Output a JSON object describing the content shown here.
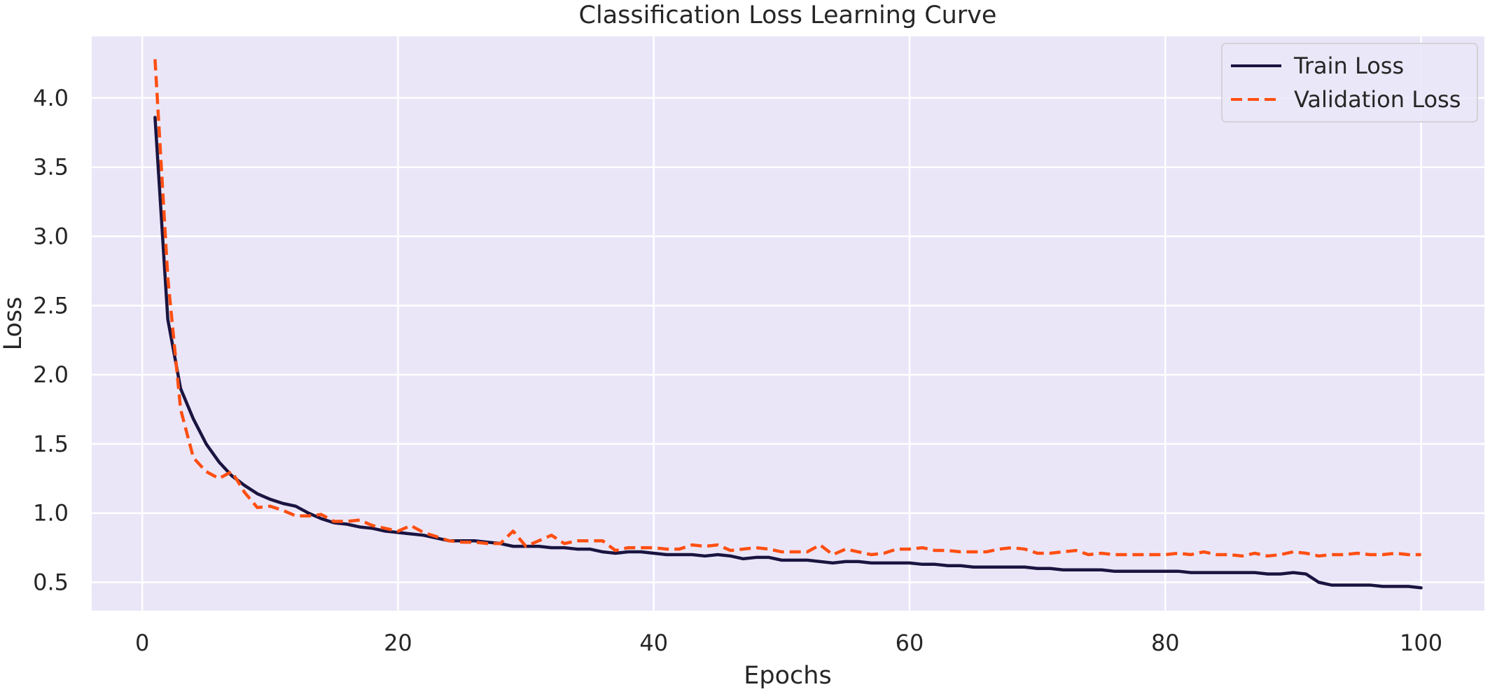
{
  "chart_data": {
    "type": "line",
    "title": "Classification Loss Learning Curve",
    "xlabel": "Epochs",
    "ylabel": "Loss",
    "xlim": [
      -3.95,
      104.95
    ],
    "ylim": [
      0.295,
      4.445
    ],
    "x_ticks": [
      0,
      20,
      40,
      60,
      80,
      100
    ],
    "y_ticks": [
      0.5,
      1.0,
      1.5,
      2.0,
      2.5,
      3.0,
      3.5,
      4.0
    ],
    "x_tick_labels": [
      "0",
      "20",
      "40",
      "60",
      "80",
      "100"
    ],
    "y_tick_labels": [
      "0.5",
      "1.0",
      "1.5",
      "2.0",
      "2.5",
      "3.0",
      "3.5",
      "4.0"
    ],
    "grid": true,
    "legend_position": "top-right",
    "x": [
      1,
      2,
      3,
      4,
      5,
      6,
      7,
      8,
      9,
      10,
      11,
      12,
      13,
      14,
      15,
      16,
      17,
      18,
      19,
      20,
      21,
      22,
      23,
      24,
      25,
      26,
      27,
      28,
      29,
      30,
      31,
      32,
      33,
      34,
      35,
      36,
      37,
      38,
      39,
      40,
      41,
      42,
      43,
      44,
      45,
      46,
      47,
      48,
      49,
      50,
      51,
      52,
      53,
      54,
      55,
      56,
      57,
      58,
      59,
      60,
      61,
      62,
      63,
      64,
      65,
      66,
      67,
      68,
      69,
      70,
      71,
      72,
      73,
      74,
      75,
      76,
      77,
      78,
      79,
      80,
      81,
      82,
      83,
      84,
      85,
      86,
      87,
      88,
      89,
      90,
      91,
      92,
      93,
      94,
      95,
      96,
      97,
      98,
      99,
      100
    ],
    "series": [
      {
        "name": "Train Loss",
        "color": "#1a1440",
        "style": "solid",
        "values": [
          3.86,
          2.4,
          1.9,
          1.68,
          1.5,
          1.37,
          1.27,
          1.2,
          1.14,
          1.1,
          1.07,
          1.05,
          1.0,
          0.96,
          0.93,
          0.92,
          0.9,
          0.89,
          0.87,
          0.86,
          0.85,
          0.84,
          0.82,
          0.8,
          0.8,
          0.8,
          0.79,
          0.78,
          0.76,
          0.76,
          0.76,
          0.75,
          0.75,
          0.74,
          0.74,
          0.72,
          0.71,
          0.72,
          0.72,
          0.71,
          0.7,
          0.7,
          0.7,
          0.69,
          0.7,
          0.69,
          0.67,
          0.68,
          0.68,
          0.66,
          0.66,
          0.66,
          0.65,
          0.64,
          0.65,
          0.65,
          0.64,
          0.64,
          0.64,
          0.64,
          0.63,
          0.63,
          0.62,
          0.62,
          0.61,
          0.61,
          0.61,
          0.61,
          0.61,
          0.6,
          0.6,
          0.59,
          0.59,
          0.59,
          0.59,
          0.58,
          0.58,
          0.58,
          0.58,
          0.58,
          0.58,
          0.57,
          0.57,
          0.57,
          0.57,
          0.57,
          0.57,
          0.56,
          0.56,
          0.57,
          0.56,
          0.5,
          0.48,
          0.48,
          0.48,
          0.48,
          0.47,
          0.47,
          0.47,
          0.46
        ]
      },
      {
        "name": "Validation Loss",
        "color": "#ff4f12",
        "style": "dashed",
        "values": [
          4.28,
          2.7,
          1.75,
          1.4,
          1.3,
          1.25,
          1.3,
          1.15,
          1.04,
          1.05,
          1.02,
          0.98,
          0.98,
          0.99,
          0.94,
          0.94,
          0.95,
          0.91,
          0.89,
          0.87,
          0.91,
          0.86,
          0.83,
          0.8,
          0.79,
          0.79,
          0.78,
          0.78,
          0.87,
          0.76,
          0.8,
          0.84,
          0.78,
          0.8,
          0.8,
          0.8,
          0.73,
          0.75,
          0.75,
          0.75,
          0.74,
          0.74,
          0.77,
          0.76,
          0.77,
          0.73,
          0.74,
          0.75,
          0.74,
          0.72,
          0.72,
          0.72,
          0.77,
          0.7,
          0.74,
          0.72,
          0.7,
          0.71,
          0.74,
          0.74,
          0.75,
          0.73,
          0.73,
          0.72,
          0.72,
          0.72,
          0.74,
          0.75,
          0.74,
          0.71,
          0.71,
          0.72,
          0.73,
          0.7,
          0.71,
          0.7,
          0.7,
          0.7,
          0.7,
          0.7,
          0.71,
          0.7,
          0.72,
          0.7,
          0.7,
          0.69,
          0.71,
          0.69,
          0.7,
          0.72,
          0.71,
          0.69,
          0.7,
          0.7,
          0.71,
          0.7,
          0.7,
          0.71,
          0.7,
          0.7
        ]
      }
    ],
    "colors": {
      "plot_background": "#eae6f8",
      "grid": "#ffffff",
      "text": "#262626"
    }
  }
}
